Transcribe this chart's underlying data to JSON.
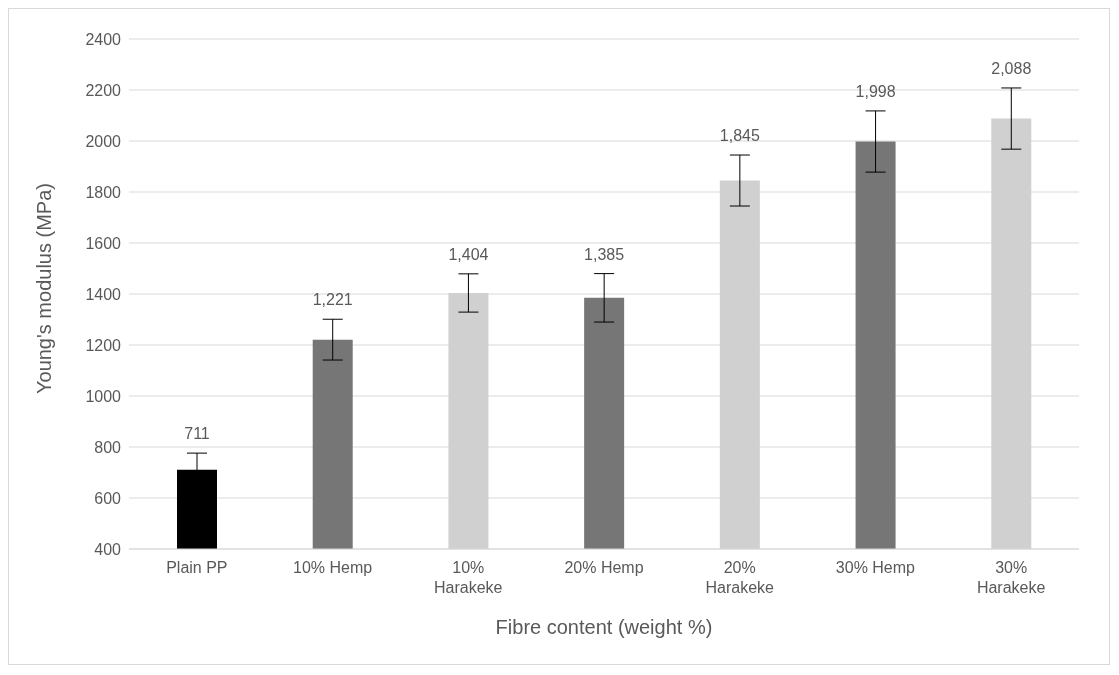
{
  "chart_data": {
    "type": "bar",
    "xlabel": "Fibre content (weight %)",
    "ylabel": "Young's modulus (MPa)",
    "categories": [
      "Plain PP",
      "10% Hemp",
      "10% Harakeke",
      "20% Hemp",
      "20% Harakeke",
      "30% Hemp",
      "30% Harakeke"
    ],
    "values": [
      711,
      1221,
      1404,
      1385,
      1845,
      1998,
      2088
    ],
    "colors": [
      "#000000",
      "#767676",
      "#d0d0d0",
      "#767676",
      "#d0d0d0",
      "#767676",
      "#d0d0d0"
    ],
    "errors": [
      65,
      80,
      75,
      95,
      100,
      120,
      120
    ],
    "value_labels": [
      "711",
      "1,221",
      "1,404",
      "1,385",
      "1,845",
      "1,998",
      "2,088"
    ],
    "ylim": [
      400,
      2400
    ],
    "yticks": [
      400,
      600,
      800,
      1000,
      1200,
      1400,
      1600,
      1800,
      2000,
      2200,
      2400
    ],
    "grid": "y"
  }
}
